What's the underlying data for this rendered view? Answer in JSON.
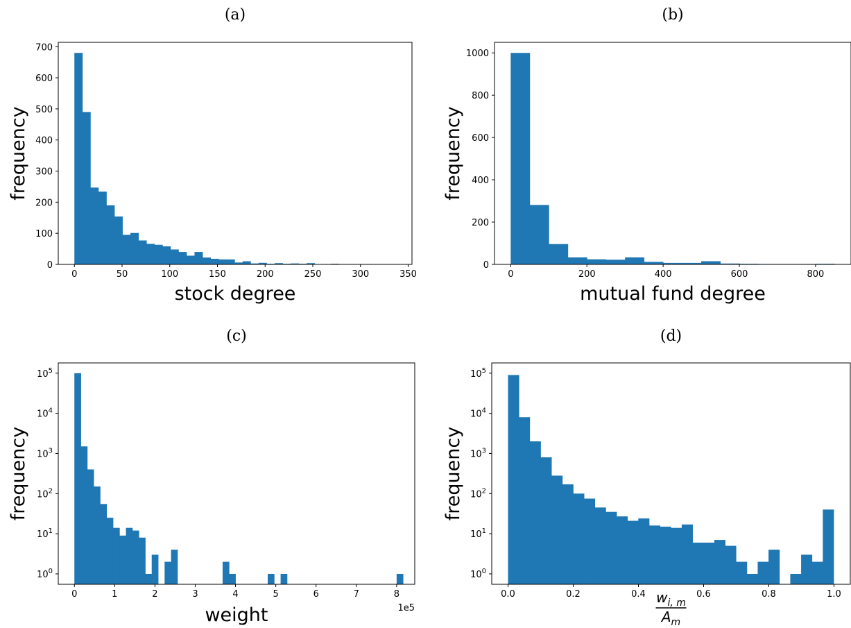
{
  "figure": {
    "bar_color": "#1f77b4",
    "axis_color": "#000000"
  },
  "chart_data": [
    {
      "type": "bar",
      "title": "(a)",
      "xlabel": "stock degree",
      "ylabel": "frequency",
      "xlim": [
        -16.9,
        354
      ],
      "ylim": [
        0,
        714
      ],
      "xticks": [
        0,
        50,
        100,
        150,
        200,
        250,
        300,
        350
      ],
      "yticks": [
        0,
        100,
        200,
        300,
        400,
        500,
        600,
        700
      ],
      "ytick_labels": [
        "0",
        "100",
        "200",
        "300",
        "400",
        "500",
        "600",
        "700"
      ],
      "bin_start": 0,
      "bin_width": 8.4,
      "values": [
        680,
        490,
        247,
        234,
        190,
        154,
        95,
        101,
        77,
        66,
        63,
        58,
        48,
        40,
        28,
        40,
        22,
        18,
        16,
        16,
        6,
        10,
        3,
        5,
        2,
        4,
        2,
        3,
        2,
        4,
        1,
        1,
        2,
        1,
        1,
        1,
        1,
        1,
        1,
        1
      ]
    },
    {
      "type": "bar",
      "title": "(b)",
      "xlabel": "mutual fund degree",
      "ylabel": "frequency",
      "xlim": [
        -42.5,
        893
      ],
      "ylim": [
        0,
        1050
      ],
      "xticks": [
        0,
        200,
        400,
        600,
        800
      ],
      "yticks": [
        0,
        200,
        400,
        600,
        800,
        1000
      ],
      "ytick_labels": [
        "0",
        "200",
        "400",
        "600",
        "800",
        "1000"
      ],
      "bin_start": 0,
      "bin_width": 50,
      "values": [
        1000,
        281,
        96,
        33,
        24,
        22,
        33,
        12,
        7,
        7,
        15,
        4,
        3,
        2,
        2,
        2,
        3
      ]
    },
    {
      "type": "bar",
      "title": "(c)",
      "xlabel": "weight",
      "ylabel": "frequency",
      "offset_label": "1e5",
      "yscale": "log",
      "xlim": [
        -0.4,
        8.45
      ],
      "ylim": [
        0.55,
        180000
      ],
      "xticks": [
        0,
        1,
        2,
        3,
        4,
        5,
        6,
        7,
        8
      ],
      "yticks": [
        1,
        10,
        100,
        1000,
        10000,
        100000
      ],
      "ytick_labels": [
        "10^0",
        "10^1",
        "10^2",
        "10^3",
        "10^4",
        "10^5"
      ],
      "bin_start": 0,
      "bin_width": 0.16,
      "values": [
        100000,
        1500,
        400,
        150,
        55,
        25,
        14,
        9,
        14,
        12,
        8,
        1,
        3,
        0,
        2,
        4,
        0,
        0,
        0,
        0,
        0,
        0,
        0,
        2,
        1,
        0,
        0,
        0,
        0,
        0,
        1,
        0,
        1,
        0,
        0,
        0,
        0,
        0,
        0,
        0,
        0,
        0,
        0,
        0,
        0,
        0,
        0,
        0,
        0,
        0,
        1
      ]
    },
    {
      "type": "bar",
      "title": "(d)",
      "xlabel": "w_{i,m} / A_m",
      "xlabel_numerator": "w",
      "xlabel_numerator_sub": "i, m",
      "xlabel_denominator": "A",
      "xlabel_denominator_sub": "m",
      "ylabel": "frequency",
      "yscale": "log",
      "xlim": [
        -0.05,
        1.05
      ],
      "ylim": [
        0.55,
        180000
      ],
      "xticks": [
        0.0,
        0.2,
        0.4,
        0.6,
        0.8,
        1.0
      ],
      "xtick_labels": [
        "0.0",
        "0.2",
        "0.4",
        "0.6",
        "0.8",
        "1.0"
      ],
      "yticks": [
        1,
        10,
        100,
        1000,
        10000,
        100000
      ],
      "ytick_labels": [
        "10^0",
        "10^1",
        "10^2",
        "10^3",
        "10^4",
        "10^5"
      ],
      "bin_start": 0,
      "bin_width": 0.0333,
      "values": [
        90000,
        8000,
        2000,
        800,
        280,
        170,
        100,
        75,
        45,
        35,
        27,
        21,
        24,
        16,
        15,
        14,
        17,
        6,
        6,
        7,
        5,
        2,
        1,
        2,
        4,
        0,
        1,
        3,
        2,
        40
      ]
    }
  ]
}
